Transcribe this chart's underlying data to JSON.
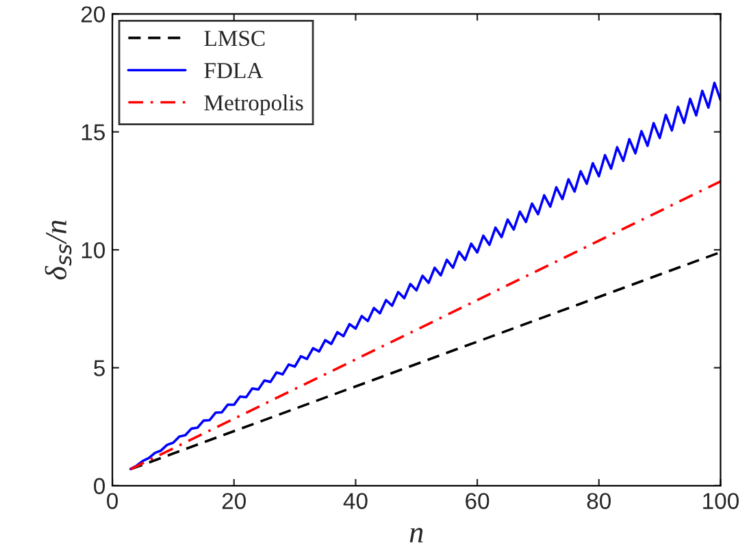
{
  "chart_data": {
    "type": "line",
    "xlabel": "n",
    "ylabel": "δ$_{ss}$/n",
    "xlim": [
      0,
      100
    ],
    "xticks": [
      0,
      20,
      40,
      60,
      80,
      100
    ],
    "ylim": [
      0,
      20
    ],
    "yticks": [
      0,
      5,
      10,
      15,
      20
    ],
    "grid": false,
    "legend": "top left",
    "series": [
      {
        "name": "LMSC",
        "color": "#000000",
        "line_style": "dashed",
        "x": [
          3,
          100
        ],
        "values": [
          0.7,
          9.9
        ]
      },
      {
        "name": "FDLA",
        "color": "#0000ff",
        "line_style": "solid",
        "x": [
          3,
          4,
          5,
          6,
          7,
          8,
          9,
          10,
          11,
          12,
          13,
          14,
          15,
          16,
          17,
          18,
          19,
          20,
          21,
          22,
          23,
          24,
          25,
          26,
          27,
          28,
          29,
          30,
          31,
          32,
          33,
          34,
          35,
          36,
          37,
          38,
          39,
          40,
          41,
          42,
          43,
          44,
          45,
          46,
          47,
          48,
          49,
          50,
          51,
          52,
          53,
          54,
          55,
          56,
          57,
          58,
          59,
          60,
          61,
          62,
          63,
          64,
          65,
          66,
          67,
          68,
          69,
          70,
          71,
          72,
          73,
          74,
          75,
          76,
          77,
          78,
          79,
          80,
          81,
          82,
          83,
          84,
          85,
          86,
          87,
          88,
          89,
          90,
          91,
          92,
          93,
          94,
          95,
          96,
          97,
          98,
          99,
          100
        ],
        "values": [
          0.71,
          0.85,
          1.05,
          1.17,
          1.39,
          1.49,
          1.73,
          1.82,
          2.08,
          2.14,
          2.42,
          2.46,
          2.76,
          2.78,
          3.1,
          3.11,
          3.44,
          3.43,
          3.78,
          3.75,
          4.12,
          4.08,
          4.46,
          4.4,
          4.8,
          4.72,
          5.14,
          5.05,
          5.49,
          5.37,
          5.83,
          5.69,
          6.17,
          6.01,
          6.51,
          6.34,
          6.85,
          6.66,
          7.19,
          6.98,
          7.53,
          7.31,
          7.87,
          7.63,
          8.21,
          7.95,
          8.55,
          8.28,
          8.9,
          8.6,
          9.24,
          8.92,
          9.58,
          9.24,
          9.92,
          9.57,
          10.26,
          9.89,
          10.6,
          10.21,
          10.94,
          10.54,
          11.28,
          10.86,
          11.62,
          11.18,
          11.96,
          11.51,
          12.31,
          11.83,
          12.65,
          12.15,
          12.99,
          12.47,
          13.33,
          12.8,
          13.67,
          13.12,
          14.01,
          13.44,
          14.35,
          13.77,
          14.69,
          14.09,
          15.03,
          14.41,
          15.37,
          14.74,
          15.72,
          15.06,
          16.06,
          15.38,
          16.4,
          15.7,
          16.74,
          16.03,
          17.08,
          16.35
        ]
      },
      {
        "name": "Metropolis",
        "color": "#ff0000",
        "line_style": "dashdot",
        "x": [
          3,
          100
        ],
        "values": [
          0.7,
          12.9
        ]
      }
    ]
  }
}
